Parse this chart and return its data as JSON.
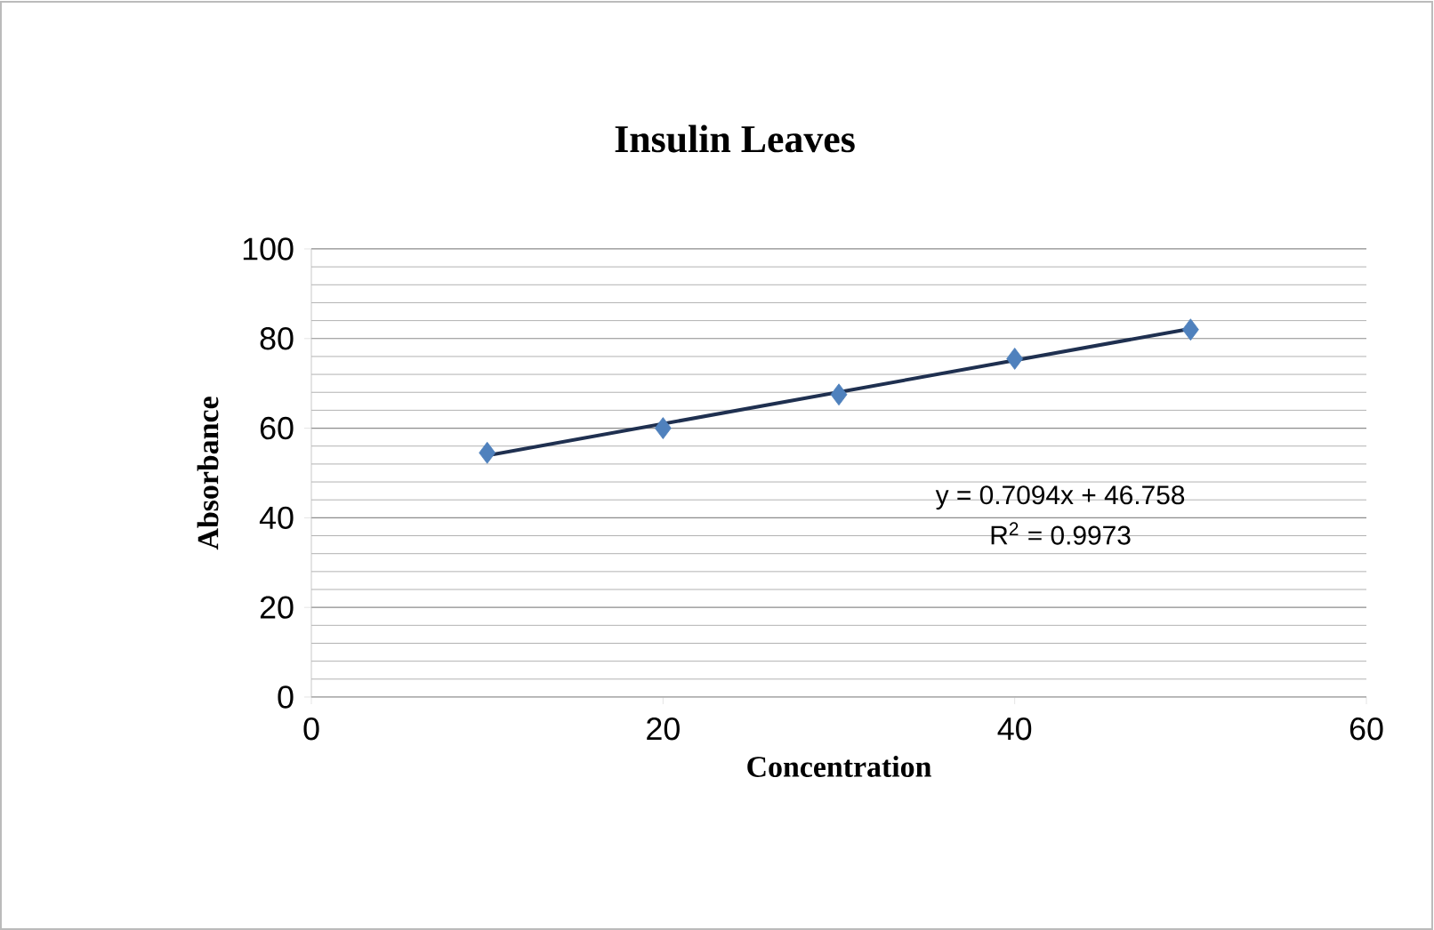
{
  "chart_data": {
    "type": "scatter",
    "title": "Insulin Leaves",
    "xlabel": "Concentration",
    "ylabel": "Absorbance",
    "xlim": [
      0,
      60
    ],
    "xticks": [
      0,
      20,
      40,
      60
    ],
    "ylim": [
      0,
      100
    ],
    "yticks": [
      0,
      20,
      40,
      60,
      80,
      100
    ],
    "grid": "y",
    "series": [
      {
        "color": "#4f81bd",
        "marker": "diamond",
        "x": [
          10,
          20,
          30,
          40,
          50
        ],
        "values": [
          54.5,
          60,
          67.5,
          75.5,
          82
        ]
      },
      {
        "type": "line",
        "marker": "none",
        "color": "#1f3050",
        "x": [
          10,
          50
        ],
        "values": [
          53.9,
          82.2
        ]
      }
    ],
    "annotations": [
      "y = 0.7094x + 46.758",
      "R$^{2}$ = 0.9973"
    ]
  }
}
